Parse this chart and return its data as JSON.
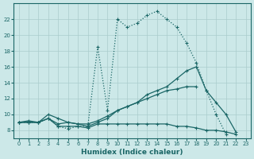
{
  "xlabel": "Humidex (Indice chaleur)",
  "bg_color": "#cce8e8",
  "grid_color": "#aacccc",
  "line_color": "#1a6666",
  "ylim": [
    7,
    24
  ],
  "xlim": [
    -0.5,
    23.5
  ],
  "yticks": [
    8,
    10,
    12,
    14,
    16,
    18,
    20,
    22
  ],
  "xticks": [
    0,
    1,
    2,
    3,
    4,
    5,
    6,
    7,
    8,
    9,
    10,
    11,
    12,
    13,
    14,
    15,
    16,
    17,
    18,
    19,
    20,
    21,
    22,
    23
  ],
  "lines": [
    {
      "x": [
        0,
        1,
        2,
        3,
        4,
        5,
        6,
        7,
        8,
        9,
        10,
        11,
        12,
        13,
        14,
        15,
        16,
        17,
        18,
        19,
        20,
        21
      ],
      "y": [
        9.0,
        9.0,
        9.0,
        9.5,
        8.5,
        8.2,
        8.5,
        8.5,
        18.5,
        10.5,
        22.0,
        21.0,
        21.5,
        22.5,
        23.0,
        22.0,
        21.0,
        19.0,
        16.5,
        13.0,
        10.0,
        7.5
      ],
      "style": ":",
      "marker": "+",
      "lw": 0.9
    },
    {
      "x": [
        0,
        1,
        2,
        3,
        4,
        5,
        6,
        7,
        8,
        9,
        10,
        11,
        12,
        13,
        14,
        15,
        16,
        17,
        18,
        19,
        20,
        21,
        22,
        23
      ],
      "y": [
        9.0,
        9.2,
        9.0,
        9.5,
        8.8,
        9.0,
        8.8,
        8.8,
        9.2,
        9.8,
        10.5,
        11.0,
        11.5,
        12.5,
        13.0,
        13.5,
        14.5,
        15.5,
        16.0,
        13.0,
        11.5,
        10.0,
        7.8,
        null
      ],
      "style": "-",
      "marker": "+",
      "lw": 0.9
    },
    {
      "x": [
        0,
        1,
        2,
        3,
        4,
        5,
        6,
        7,
        8,
        9,
        10,
        11,
        12,
        13,
        14,
        15,
        16,
        17,
        18,
        19,
        20,
        21,
        22,
        23
      ],
      "y": [
        9.0,
        9.0,
        9.0,
        9.5,
        8.5,
        8.5,
        8.5,
        8.3,
        8.8,
        8.8,
        8.8,
        8.8,
        8.8,
        8.8,
        8.8,
        8.8,
        8.5,
        8.5,
        8.3,
        8.0,
        8.0,
        7.8,
        7.5,
        null
      ],
      "style": "-",
      "marker": "+",
      "lw": 0.9
    },
    {
      "x": [
        0,
        1,
        2,
        3,
        4,
        5,
        6,
        7,
        8,
        9,
        10,
        11,
        12,
        13,
        14,
        15,
        16,
        17,
        18,
        19,
        20,
        21,
        22,
        23
      ],
      "y": [
        9.0,
        9.0,
        9.0,
        10.0,
        9.5,
        9.0,
        8.8,
        8.5,
        9.0,
        9.5,
        10.5,
        11.0,
        11.5,
        12.0,
        12.5,
        13.0,
        13.2,
        13.5,
        13.5,
        null,
        null,
        null,
        null,
        null
      ],
      "style": "-",
      "marker": "+",
      "lw": 0.9
    }
  ]
}
